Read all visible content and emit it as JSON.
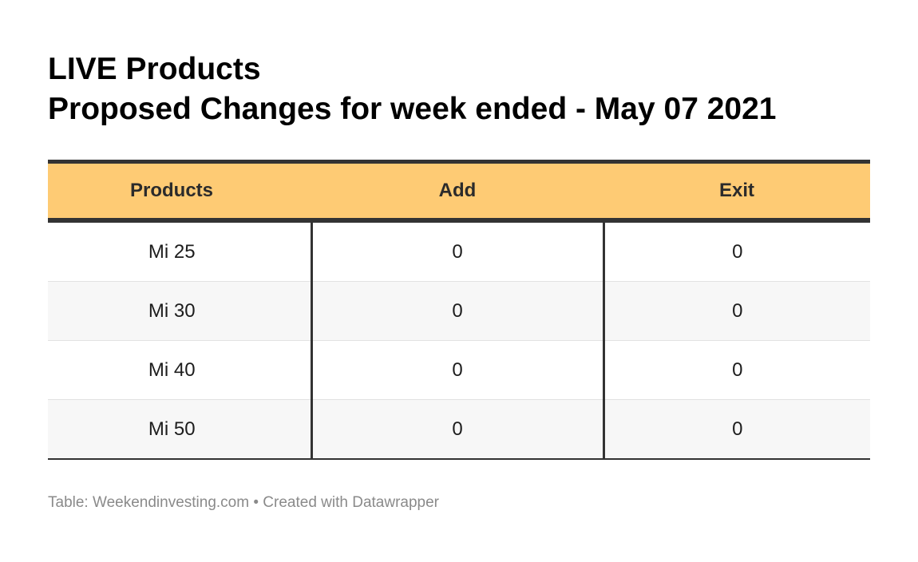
{
  "title": {
    "line1": "LIVE Products",
    "line2": "Proposed Changes for week ended - May 07 2021"
  },
  "table": {
    "headers": [
      "Products",
      "Add",
      "Exit"
    ],
    "rows": [
      [
        "Mi 25",
        "0",
        "0"
      ],
      [
        "Mi 30",
        "0",
        "0"
      ],
      [
        "Mi 40",
        "0",
        "0"
      ],
      [
        "Mi 50",
        "0",
        "0"
      ]
    ]
  },
  "footer": {
    "source": "Table: Weekendinvesting.com",
    "separator": "•",
    "credit": "Created with Datawrapper"
  },
  "colors": {
    "header_background": "#fecb74",
    "rule": "#333333",
    "striped_row": "#f7f7f7"
  },
  "chart_data": {
    "type": "table",
    "title": "LIVE Products",
    "subtitle": "Proposed Changes for week ended - May 07 2021",
    "columns": [
      "Products",
      "Add",
      "Exit"
    ],
    "rows": [
      {
        "Products": "Mi 25",
        "Add": 0,
        "Exit": 0
      },
      {
        "Products": "Mi 30",
        "Add": 0,
        "Exit": 0
      },
      {
        "Products": "Mi 40",
        "Add": 0,
        "Exit": 0
      },
      {
        "Products": "Mi 50",
        "Add": 0,
        "Exit": 0
      }
    ]
  }
}
